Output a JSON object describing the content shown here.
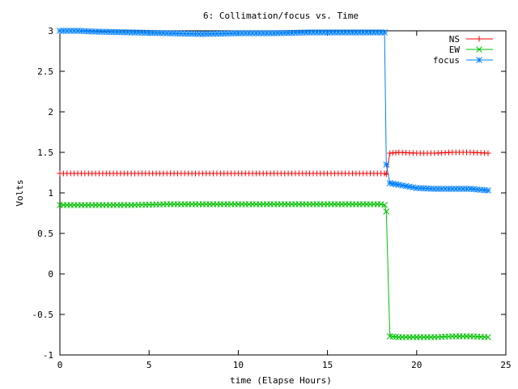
{
  "chart_data": {
    "type": "line",
    "title": "6: Collimation/focus vs. Time",
    "xlabel": "time (Elapse Hours)",
    "ylabel": "Volts",
    "xlim": [
      0,
      25
    ],
    "ylim": [
      -1,
      3
    ],
    "xticks": [
      0,
      5,
      10,
      15,
      20,
      25
    ],
    "yticks": [
      -1,
      -0.5,
      0,
      0.5,
      1,
      1.5,
      2,
      2.5,
      3
    ],
    "grid": false,
    "legend_position": "top-right",
    "series": [
      {
        "name": "NS",
        "color": "#ff0000",
        "marker": "plus",
        "x": [
          0,
          2,
          4,
          6,
          8,
          10,
          12,
          14,
          16,
          18,
          18.2,
          18.3,
          18.5,
          19,
          20,
          21,
          22,
          23,
          24
        ],
        "y": [
          1.24,
          1.24,
          1.24,
          1.24,
          1.24,
          1.24,
          1.24,
          1.24,
          1.24,
          1.24,
          1.24,
          1.23,
          1.49,
          1.5,
          1.49,
          1.49,
          1.5,
          1.5,
          1.49
        ]
      },
      {
        "name": "EW",
        "color": "#00c000",
        "marker": "cross",
        "x": [
          0,
          2,
          4,
          6,
          8,
          10,
          12,
          14,
          16,
          18,
          18.2,
          18.3,
          18.5,
          19,
          20,
          21,
          22,
          23,
          24
        ],
        "y": [
          0.85,
          0.85,
          0.85,
          0.86,
          0.86,
          0.86,
          0.86,
          0.86,
          0.86,
          0.86,
          0.85,
          0.77,
          -0.77,
          -0.78,
          -0.78,
          -0.78,
          -0.77,
          -0.77,
          -0.78
        ]
      },
      {
        "name": "focus",
        "color": "#0080ff",
        "marker": "star",
        "x": [
          0,
          1,
          2,
          4,
          6,
          8,
          10,
          12,
          14,
          16,
          18,
          18.2,
          18.3,
          18.5,
          19,
          20,
          21,
          22,
          23,
          24
        ],
        "y": [
          3.0,
          3.0,
          2.99,
          2.98,
          2.97,
          2.96,
          2.97,
          2.97,
          2.98,
          2.98,
          2.98,
          2.98,
          1.35,
          1.12,
          1.1,
          1.06,
          1.05,
          1.05,
          1.05,
          1.03
        ]
      }
    ]
  }
}
